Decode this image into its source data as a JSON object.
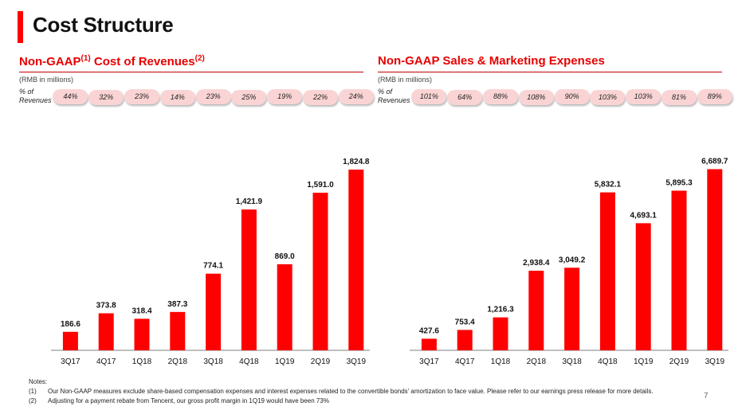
{
  "title": "Cost Structure",
  "colors": {
    "accent": "#e60000",
    "bar": "#ff0000",
    "pill": "#fad4d4"
  },
  "chart_data": [
    {
      "type": "bar",
      "title": "Non-GAAP",
      "title_sup1": "(1)",
      "title_rest": " Cost of Revenues",
      "title_sup2": "(2)",
      "unit": "(RMB in millions)",
      "pct_label_line1": "% of",
      "pct_label_line2": "Revenues",
      "categories": [
        "3Q17",
        "4Q17",
        "1Q18",
        "2Q18",
        "3Q18",
        "4Q18",
        "1Q19",
        "2Q19",
        "3Q19"
      ],
      "values": [
        186.6,
        373.8,
        318.4,
        387.3,
        774.1,
        1421.9,
        869.0,
        1591.0,
        1824.8
      ],
      "labels": [
        "186.6",
        "373.8",
        "318.4",
        "387.3",
        "774.1",
        "1,421.9",
        "869.0",
        "1,591.0",
        "1,824.8"
      ],
      "pct_of_revenues": [
        "44%",
        "32%",
        "23%",
        "14%",
        "23%",
        "25%",
        "19%",
        "22%",
        "24%"
      ],
      "ylim": [
        0,
        2010
      ]
    },
    {
      "type": "bar",
      "title": "Non-GAAP Sales & Marketing Expenses",
      "unit": "(RMB in millions)",
      "pct_label_line1": "% of",
      "pct_label_line2": "Revenues",
      "categories": [
        "3Q17",
        "4Q17",
        "1Q18",
        "2Q18",
        "3Q18",
        "4Q18",
        "1Q19",
        "2Q19",
        "3Q19"
      ],
      "values": [
        427.6,
        753.4,
        1216.3,
        2938.4,
        3049.2,
        5832.1,
        4693.1,
        5895.3,
        6689.7
      ],
      "labels": [
        "427.6",
        "753.4",
        "1,216.3",
        "2,938.4",
        "3,049.2",
        "5,832.1",
        "4,693.1",
        "5,895.3",
        "6,689.7"
      ],
      "pct_of_revenues": [
        "101%",
        "64%",
        "88%",
        "108%",
        "90%",
        "103%",
        "103%",
        "81%",
        "89%"
      ],
      "ylim": [
        0,
        7350
      ]
    }
  ],
  "notes": {
    "heading": "Notes:",
    "items": [
      {
        "num": "(1)",
        "text": "Our Non-GAAP measures exclude share-based compensation expenses and interest expenses related to the convertible bonds' amortization to face value. Please refer to our earnings press release for more details."
      },
      {
        "num": "(2)",
        "text": "Adjusting for a payment rebate from Tencent, our gross profit margin in 1Q19 would have been 73%"
      }
    ]
  },
  "page_number": "7"
}
